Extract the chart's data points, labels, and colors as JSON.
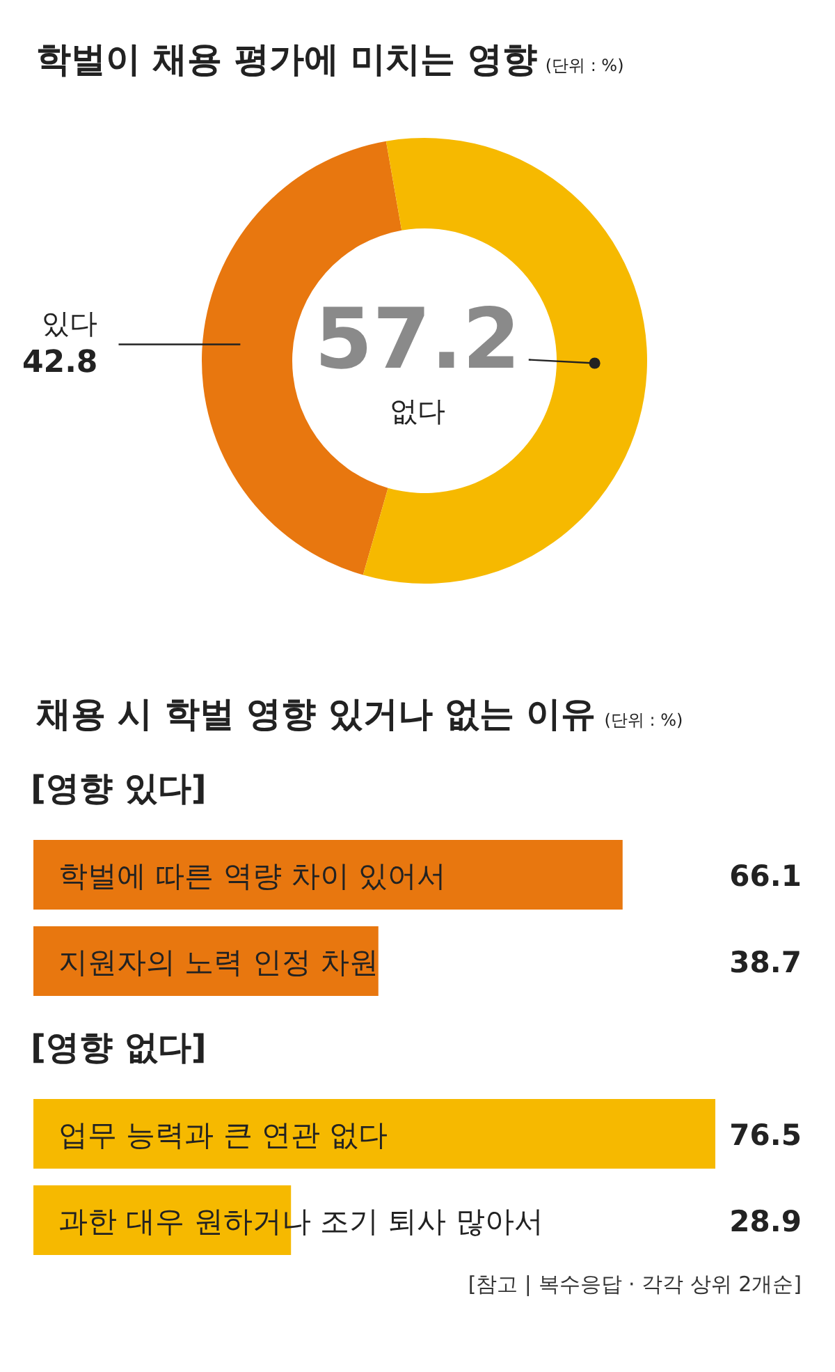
{
  "chart_data": [
    {
      "type": "donut",
      "title": "학벌이 채용 평가에 미치는 영향",
      "subtitle": "(단위 : %)",
      "categories": [
        "있다",
        "없다"
      ],
      "values": [
        42.8,
        57.2
      ],
      "colors": [
        "#e8770f",
        "#f6b900"
      ],
      "data_labels": true,
      "legend": false
    },
    {
      "type": "bar",
      "orientation": "horizontal",
      "title": "채용 시 학벌 영향 있거나 없는 이유",
      "subtitle": "(단위 : %)",
      "categories": [
        "학벌에 따른 역량 차이 있어서",
        "지원자의 노력 인정 차원",
        "업무 능력과 큰 연관 없다",
        "과한 대우 원하거나 조기 퇴사 많아서"
      ],
      "values": [
        66.1,
        38.7,
        76.5,
        28.9
      ],
      "colors": [
        "#e8770f",
        "#e8770f",
        "#f6b900",
        "#f6b900"
      ],
      "data_labels": true,
      "legend": false,
      "annotations": [
        "[영향 있다]",
        "[영향 없다]",
        "[참고 | 복수응답 · 각각 상위 2개순]"
      ]
    }
  ]
}
